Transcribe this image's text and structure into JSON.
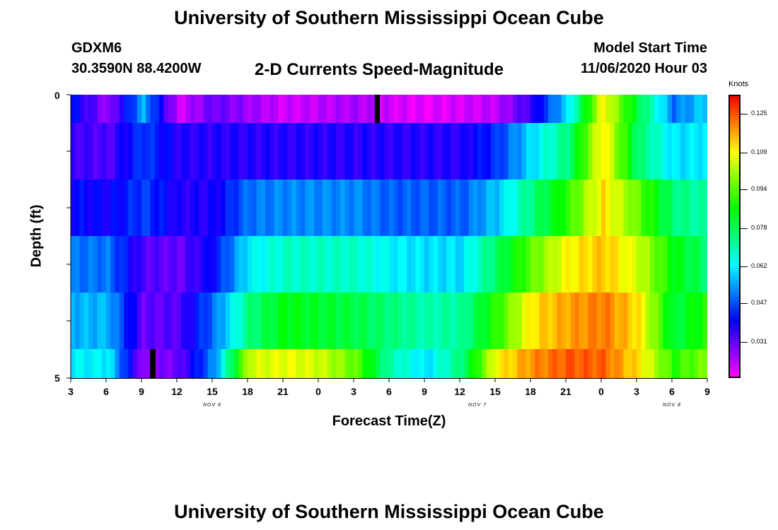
{
  "header": {
    "title_top": "University of Southern Mississippi Ocean Cube",
    "title_bottom": "University of Southern Mississippi Ocean Cube",
    "station": "GDXM6",
    "coords": "30.3590N 88.4200W",
    "plot_title": "2-D Currents Speed-Magnitude",
    "start_label": "Model Start Time",
    "start_value": "11/06/2020 Hour 03"
  },
  "chart_data": {
    "type": "heatmap",
    "title": "2-D Currents Speed-Magnitude",
    "xlabel": "Forecast Time(Z)",
    "ylabel": "Depth (ft)",
    "x_ticks": [
      "3",
      "6",
      "9",
      "12",
      "15",
      "18",
      "21",
      "0",
      "3",
      "6",
      "9",
      "12",
      "15",
      "18",
      "21",
      "0",
      "3",
      "6",
      "9"
    ],
    "date_labels": [
      "NOV 6",
      "NOV 7",
      "NOV 8"
    ],
    "y_ticks": [
      "0",
      "5"
    ],
    "ylim": [
      0,
      5
    ],
    "colorbar": {
      "label": "Knots",
      "ticks": [
        "0.125",
        "0.109",
        "0.094",
        "0.078",
        "0.062",
        "0.047",
        "0.031"
      ],
      "vmin": 0.016,
      "vmax": 0.133
    },
    "rows": [
      {
        "depth": "0.0-0.5 ft",
        "values": [
          0.04,
          0.025,
          0.055,
          0.02,
          0.03,
          0.025,
          0.02,
          0.022,
          0.024,
          0.02,
          0.018,
          0.02,
          0.022,
          0.035,
          0.06,
          0.11,
          0.08,
          0.05,
          0.06
        ]
      },
      {
        "depth": "0.5-1.5 ft",
        "values": [
          0.034,
          0.032,
          0.045,
          0.036,
          0.036,
          0.036,
          0.036,
          0.036,
          0.036,
          0.036,
          0.036,
          0.036,
          0.044,
          0.06,
          0.075,
          0.112,
          0.076,
          0.06,
          0.062
        ]
      },
      {
        "depth": "1.5-2.5 ft",
        "values": [
          0.04,
          0.038,
          0.045,
          0.036,
          0.037,
          0.05,
          0.052,
          0.052,
          0.052,
          0.048,
          0.048,
          0.048,
          0.058,
          0.075,
          0.09,
          0.112,
          0.095,
          0.075,
          0.07
        ]
      },
      {
        "depth": "2.5-3.5 ft",
        "values": [
          0.05,
          0.05,
          0.032,
          0.03,
          0.04,
          0.062,
          0.068,
          0.068,
          0.068,
          0.062,
          0.06,
          0.06,
          0.078,
          0.095,
          0.11,
          0.115,
          0.105,
          0.085,
          0.075
        ]
      },
      {
        "depth": "3.5-4.5 ft",
        "values": [
          0.056,
          0.056,
          0.03,
          0.032,
          0.05,
          0.075,
          0.085,
          0.082,
          0.08,
          0.075,
          0.07,
          0.072,
          0.09,
          0.112,
          0.118,
          0.122,
          0.112,
          0.08,
          0.09
        ]
      },
      {
        "depth": "4.5-5.0 ft",
        "values": [
          0.062,
          0.062,
          0.025,
          0.03,
          0.052,
          0.105,
          0.108,
          0.105,
          0.095,
          0.07,
          0.06,
          0.075,
          0.11,
          0.12,
          0.125,
          0.124,
          0.112,
          0.09,
          0.098
        ]
      }
    ]
  }
}
